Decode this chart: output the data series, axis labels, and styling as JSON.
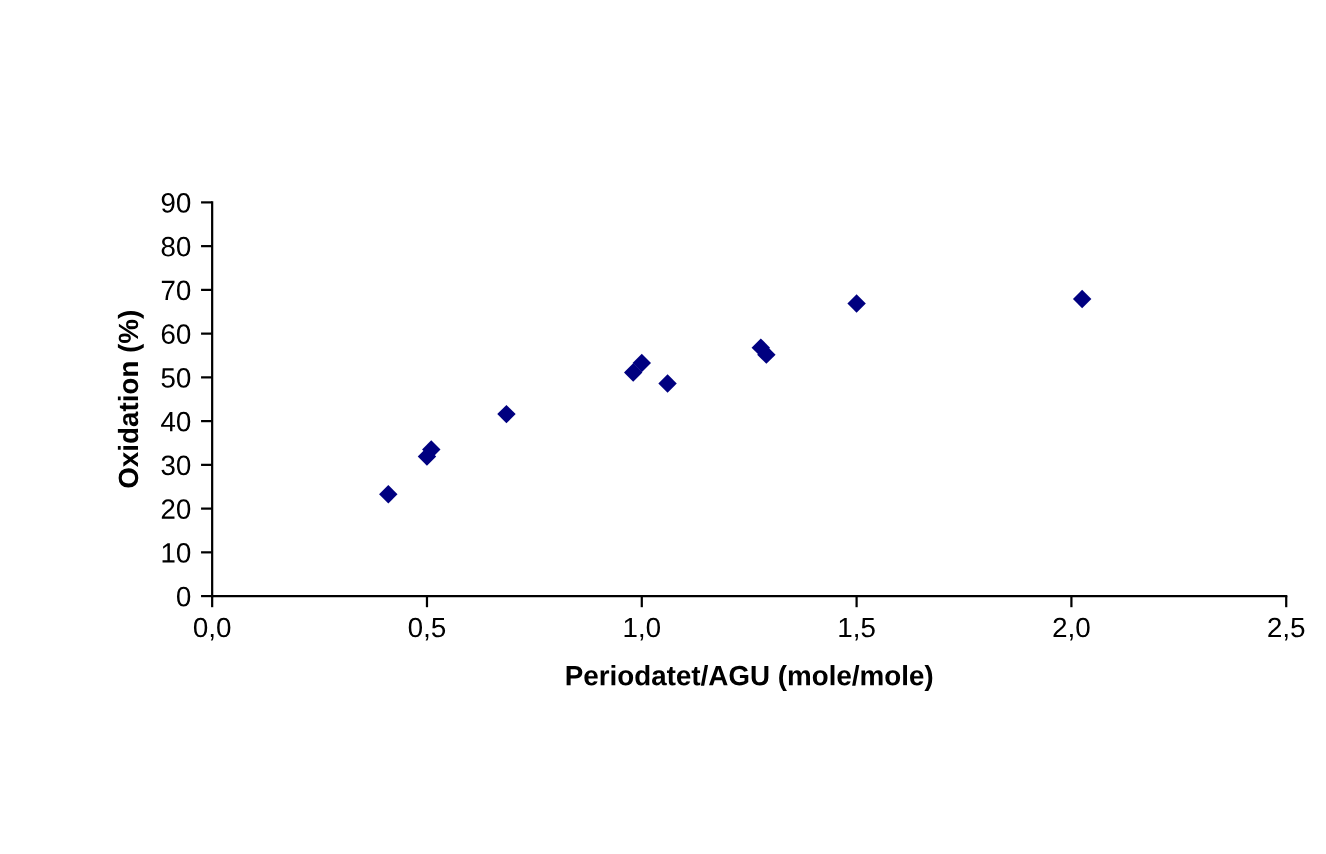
{
  "chart_data": {
    "type": "scatter",
    "xlabel": "Periodatet/AGU (mole/mole)",
    "ylabel": "Oxidation (%)",
    "x": [
      0.41,
      0.5,
      0.51,
      0.685,
      0.98,
      1.0,
      1.06,
      1.277,
      1.29,
      1.5,
      2.025
    ],
    "series": [
      {
        "color": "#000080",
        "values": [
          23.3,
          31.9,
          33.5,
          41.6,
          51.1,
          53.3,
          48.6,
          56.8,
          55.2,
          66.9,
          67.9
        ]
      }
    ],
    "xlim": [
      0,
      2.5
    ],
    "xticks": [
      {
        "value": 0,
        "label": "0,0"
      },
      {
        "value": 0.5,
        "label": "0,5"
      },
      {
        "value": 1,
        "label": "1,0"
      },
      {
        "value": 1.5,
        "label": "1,5"
      },
      {
        "value": 2,
        "label": "2,0"
      },
      {
        "value": 2.5,
        "label": "2,5"
      }
    ],
    "ylim": [
      0,
      90
    ],
    "yticks": [
      0,
      10,
      20,
      30,
      40,
      50,
      60,
      70,
      80,
      90
    ],
    "marker": "diamond",
    "grid": false
  }
}
